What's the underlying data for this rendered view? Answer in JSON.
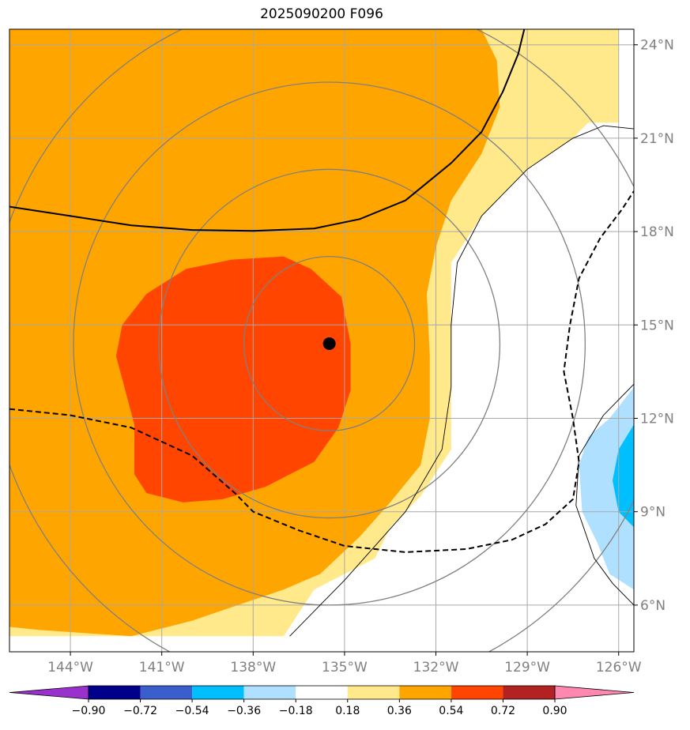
{
  "chart_data": {
    "type": "map-contour",
    "title": "2025090200 F096",
    "lon_range": [
      -146,
      -125.5
    ],
    "lat_range": [
      4.5,
      24.5
    ],
    "lon_ticks": [
      -144,
      -141,
      -138,
      -135,
      -132,
      -129,
      -126
    ],
    "lon_tick_labels": [
      "144°W",
      "141°W",
      "138°W",
      "135°W",
      "132°W",
      "129°W",
      "126°W"
    ],
    "lat_ticks": [
      6,
      9,
      12,
      15,
      18,
      21,
      24
    ],
    "lat_tick_labels": [
      "6°N",
      "9°N",
      "12°N",
      "15°N",
      "18°N",
      "21°N",
      "24°N"
    ],
    "center_point": {
      "lon": -135.5,
      "lat": 14.4,
      "color": "#000000"
    },
    "range_rings_deg": [
      2.8,
      5.6,
      8.4,
      11.2
    ],
    "colorbar": {
      "levels": [
        -0.9,
        -0.72,
        -0.54,
        -0.36,
        -0.18,
        0.18,
        0.36,
        0.54,
        0.72,
        0.9
      ],
      "labels": [
        "−0.90",
        "−0.72",
        "−0.54",
        "−0.36",
        "−0.18",
        "0.18",
        "0.36",
        "0.54",
        "0.72",
        "0.90"
      ],
      "colors": [
        "#9932cc",
        "#00008b",
        "#3a5fcd",
        "#00bfff",
        "#b0e0ff",
        "#ffffff",
        "#ffe98a",
        "#ffa500",
        "#ff4500",
        "#b22222",
        "#ff88b0"
      ]
    },
    "filled_regions": [
      {
        "level": "0.18-0.36",
        "color": "#ffe98a",
        "lonlat": [
          [
            -146,
            24.5
          ],
          [
            -126,
            24.5
          ],
          [
            -126,
            21.5
          ],
          [
            -127,
            21.5
          ],
          [
            -127.5,
            21
          ],
          [
            -129,
            20
          ],
          [
            -130.5,
            18.5
          ],
          [
            -131.5,
            17
          ],
          [
            -131.5,
            14
          ],
          [
            -131.5,
            11
          ],
          [
            -132.5,
            9.5
          ],
          [
            -133.5,
            8.5
          ],
          [
            -134,
            7.5
          ],
          [
            -135,
            7
          ],
          [
            -136,
            6.5
          ],
          [
            -137,
            5
          ],
          [
            -146,
            5
          ]
        ]
      },
      {
        "level": "0.36-0.54",
        "color": "#ffa500",
        "lonlat": [
          [
            -146,
            24.5
          ],
          [
            -130.5,
            24.5
          ],
          [
            -130,
            23.5
          ],
          [
            -129.9,
            22
          ],
          [
            -130.5,
            20.5
          ],
          [
            -131.5,
            19
          ],
          [
            -132,
            17.5
          ],
          [
            -132.3,
            16
          ],
          [
            -132.2,
            14
          ],
          [
            -132.2,
            12
          ],
          [
            -132.5,
            10.5
          ],
          [
            -133.5,
            9.3
          ],
          [
            -134.5,
            8.2
          ],
          [
            -135.8,
            7
          ],
          [
            -137,
            6.5
          ],
          [
            -138.5,
            6
          ],
          [
            -140,
            5.5
          ],
          [
            -142,
            5
          ],
          [
            -145,
            5.2
          ],
          [
            -146,
            5.3
          ]
        ]
      },
      {
        "level": "0.54-0.72",
        "color": "#ff4500",
        "lonlat": [
          [
            -142.5,
            14
          ],
          [
            -142.3,
            15
          ],
          [
            -141.5,
            16
          ],
          [
            -140.2,
            16.8
          ],
          [
            -138.7,
            17.1
          ],
          [
            -137,
            17.2
          ],
          [
            -136.1,
            16.8
          ],
          [
            -135.1,
            15.9
          ],
          [
            -134.8,
            14.4
          ],
          [
            -134.8,
            12.9
          ],
          [
            -135.2,
            11.7
          ],
          [
            -136,
            10.6
          ],
          [
            -137.6,
            9.8
          ],
          [
            -139,
            9.4
          ],
          [
            -140.3,
            9.3
          ],
          [
            -141.5,
            9.6
          ],
          [
            -141.9,
            10.2
          ],
          [
            -141.9,
            11.8
          ],
          [
            -142.5,
            14
          ]
        ]
      },
      {
        "level": "-0.36--0.18",
        "color": "#b0e0ff",
        "lonlat": [
          [
            -125.5,
            13
          ],
          [
            -126.3,
            12
          ],
          [
            -127,
            11.4
          ],
          [
            -127.3,
            10.5
          ],
          [
            -127.2,
            9
          ],
          [
            -126.7,
            8
          ],
          [
            -126.3,
            7
          ],
          [
            -125.5,
            6.5
          ]
        ]
      },
      {
        "level": "-0.54--0.36",
        "color": "#00bfff",
        "lonlat": [
          [
            -125.5,
            11.8
          ],
          [
            -126,
            11
          ],
          [
            -126.2,
            10
          ],
          [
            -126,
            9
          ],
          [
            -125.5,
            8.5
          ]
        ]
      }
    ],
    "solid_lines": [
      {
        "color": "#000000",
        "width": 2,
        "lonlat": [
          [
            -146,
            18.8
          ],
          [
            -144,
            18.5
          ],
          [
            -142,
            18.2
          ],
          [
            -140,
            18.05
          ],
          [
            -138,
            18.02
          ],
          [
            -136,
            18.1
          ],
          [
            -134.5,
            18.4
          ],
          [
            -133,
            19
          ],
          [
            -132,
            19.8
          ],
          [
            -131.5,
            20.2
          ],
          [
            -130.5,
            21.2
          ],
          [
            -129.8,
            22.5
          ],
          [
            -129.3,
            23.7
          ],
          [
            -129.1,
            24.5
          ]
        ]
      }
    ],
    "dashed_lines": [
      {
        "color": "#000000",
        "width": 2,
        "lonlat": [
          [
            -146,
            12.3
          ],
          [
            -144,
            12.1
          ],
          [
            -142,
            11.7
          ],
          [
            -140,
            10.8
          ],
          [
            -138.6,
            9.6
          ],
          [
            -138,
            9
          ],
          [
            -136.5,
            8.4
          ],
          [
            -135,
            7.9
          ],
          [
            -133,
            7.7
          ],
          [
            -131,
            7.8
          ],
          [
            -129.5,
            8.1
          ],
          [
            -128.4,
            8.6
          ],
          [
            -127.5,
            9.4
          ],
          [
            -127.3,
            10.6
          ],
          [
            -127.5,
            12
          ],
          [
            -127.8,
            13.5
          ],
          [
            -127.6,
            15
          ],
          [
            -127.3,
            16.5
          ],
          [
            -126.6,
            17.8
          ],
          [
            -125.9,
            18.7
          ],
          [
            -125.5,
            19.3
          ]
        ]
      }
    ],
    "thin_lines": [
      {
        "color": "#000000",
        "width": 0.9,
        "lonlat": [
          [
            -136.8,
            5
          ],
          [
            -135,
            6.8
          ],
          [
            -133,
            9
          ],
          [
            -131.8,
            11
          ],
          [
            -131.5,
            13
          ],
          [
            -131.5,
            15
          ],
          [
            -131.3,
            17
          ],
          [
            -130.5,
            18.5
          ],
          [
            -129,
            20
          ],
          [
            -127.5,
            21
          ],
          [
            -126.5,
            21.4
          ],
          [
            -125.5,
            21.3
          ]
        ]
      },
      {
        "color": "#000000",
        "width": 0.9,
        "lonlat": [
          [
            -125.5,
            13.1
          ],
          [
            -126.5,
            12.1
          ],
          [
            -127.3,
            10.8
          ],
          [
            -127.4,
            9.2
          ],
          [
            -126.8,
            7.5
          ],
          [
            -126.2,
            6.7
          ],
          [
            -125.5,
            6
          ]
        ]
      }
    ]
  }
}
